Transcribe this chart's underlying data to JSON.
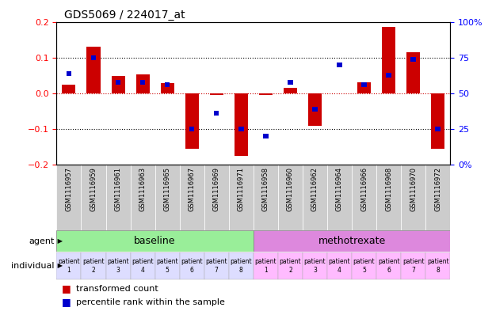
{
  "title": "GDS5069 / 224017_at",
  "samples": [
    "GSM1116957",
    "GSM1116959",
    "GSM1116961",
    "GSM1116963",
    "GSM1116965",
    "GSM1116967",
    "GSM1116969",
    "GSM1116971",
    "GSM1116958",
    "GSM1116960",
    "GSM1116962",
    "GSM1116964",
    "GSM1116966",
    "GSM1116968",
    "GSM1116970",
    "GSM1116972"
  ],
  "red_values": [
    0.025,
    0.13,
    0.048,
    0.052,
    0.028,
    -0.155,
    -0.005,
    -0.175,
    -0.005,
    0.015,
    -0.09,
    0.0,
    0.03,
    0.185,
    0.115,
    -0.155
  ],
  "blue_values": [
    0.055,
    0.1,
    0.03,
    0.03,
    0.025,
    -0.1,
    -0.055,
    -0.1,
    -0.12,
    0.03,
    -0.045,
    0.08,
    0.025,
    0.05,
    0.095,
    -0.1
  ],
  "ylim": [
    -0.2,
    0.2
  ],
  "y2lim": [
    0,
    100
  ],
  "yticks": [
    -0.2,
    -0.1,
    0.0,
    0.1,
    0.2
  ],
  "y2ticks": [
    0,
    25,
    50,
    75,
    100
  ],
  "y2ticklabels": [
    "0%",
    "25",
    "50",
    "75",
    "100%"
  ],
  "baseline_group": [
    0,
    1,
    2,
    3,
    4,
    5,
    6,
    7
  ],
  "methotrexate_group": [
    8,
    9,
    10,
    11,
    12,
    13,
    14,
    15
  ],
  "baseline_label": "baseline",
  "methotrexate_label": "methotrexate",
  "agent_label": "agent",
  "individual_label": "individual",
  "individual_labels": [
    "patient\n1",
    "patient\n2",
    "patient\n3",
    "patient\n4",
    "patient\n5",
    "patient\n6",
    "patient\n7",
    "patient\n8",
    "patient\n1",
    "patient\n2",
    "patient\n3",
    "patient\n4",
    "patient\n5",
    "patient\n6",
    "patient\n7",
    "patient\n8"
  ],
  "bar_color": "#cc0000",
  "blue_color": "#0000cc",
  "baseline_color": "#99ee99",
  "methotrexate_color": "#dd88dd",
  "sample_bg_color": "#cccccc",
  "indiv_bg_color_baseline": "#ddddff",
  "indiv_bg_color_methotrexate": "#ffbbff",
  "title_fontsize": 10,
  "tick_fontsize": 8,
  "sample_fontsize": 6,
  "legend_fontsize": 8
}
